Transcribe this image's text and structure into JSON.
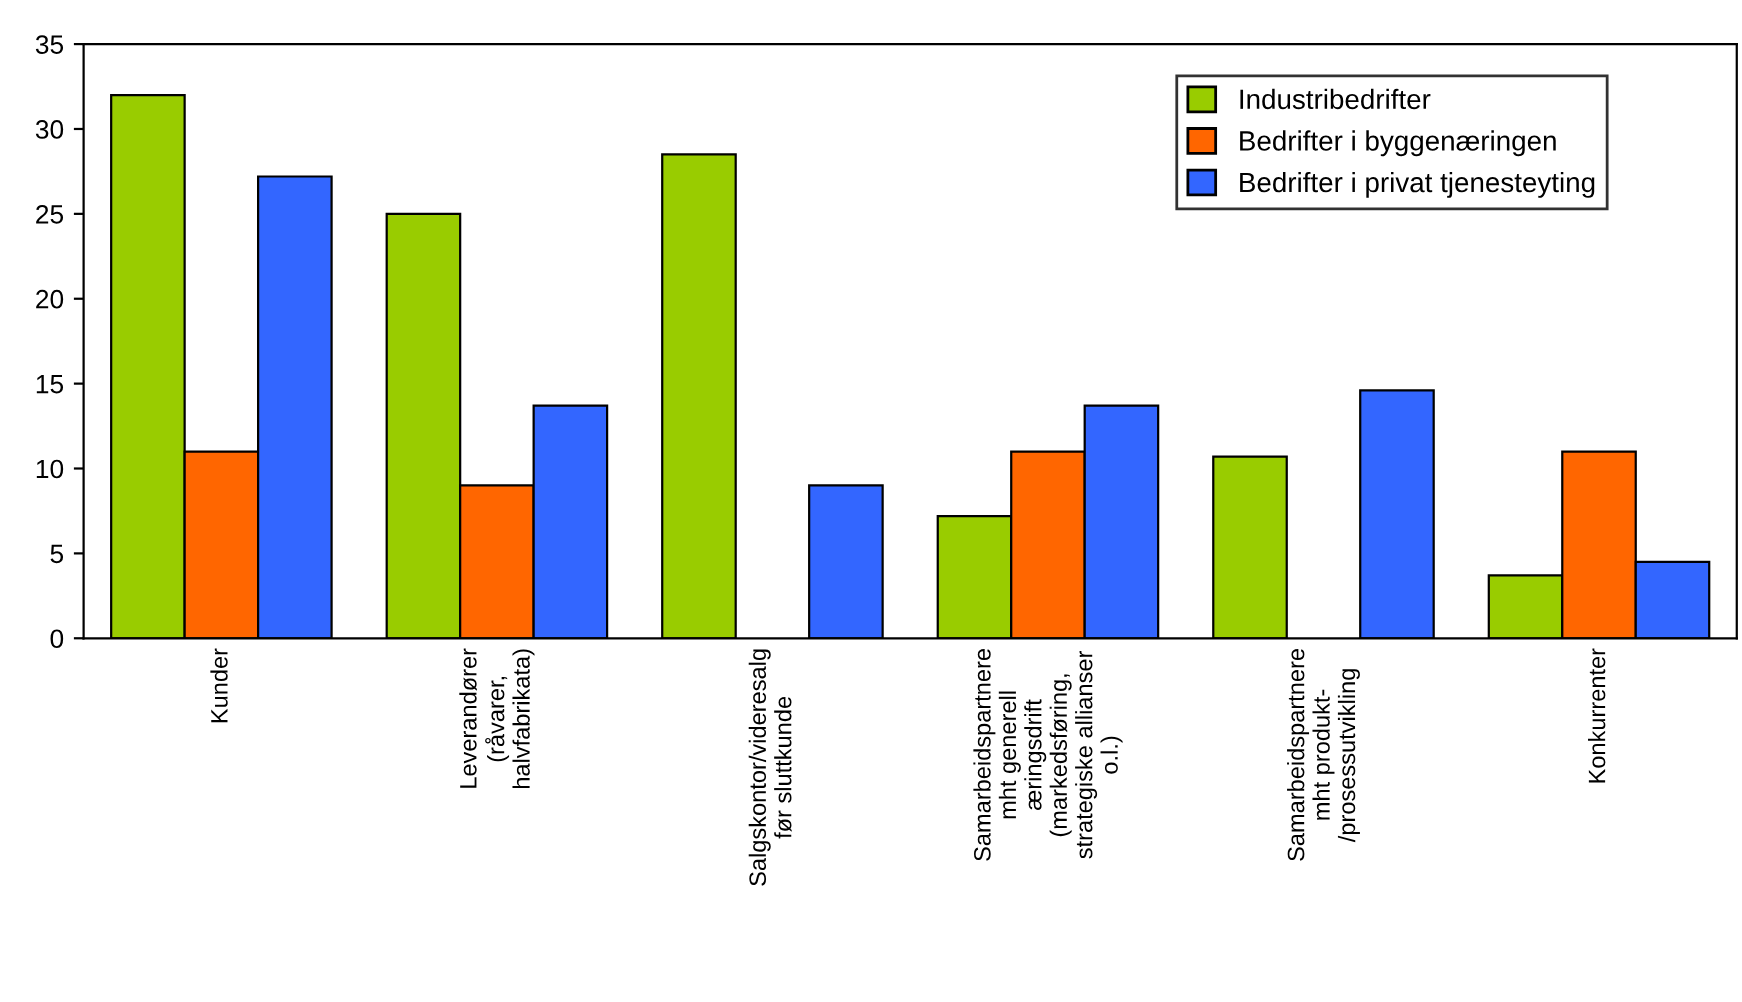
{
  "chart_data": {
    "type": "bar",
    "categories": [
      "Kunder",
      "Leverandører\n(råvarer,\nhalvfabrikata)",
      "Salgskontor/videresalg\nfør sluttkunde",
      "Samarbeidspartnere\nmht generell\næringsdrift\n(markedsføring,\nstrategiske allianser\no.l.)",
      "Samarbeidspartnere\nmht produkt-\n/prosessutvikling",
      "Konkurrenter"
    ],
    "series": [
      {
        "name": "Industribedrifter",
        "color": "#99cc00",
        "values": [
          32,
          25,
          28.5,
          7.2,
          10.7,
          3.7
        ]
      },
      {
        "name": "Bedrifter i byggenæringen",
        "color": "#ff6600",
        "values": [
          11,
          9,
          null,
          11,
          null,
          11
        ]
      },
      {
        "name": "Bedrifter i privat tjenesteyting",
        "color": "#3366ff",
        "values": [
          27.2,
          13.7,
          9,
          13.7,
          14.6,
          4.5
        ]
      }
    ],
    "ylim": [
      0,
      35
    ],
    "yticks": [
      0,
      5,
      10,
      15,
      20,
      25,
      30,
      35
    ],
    "grid": false,
    "legend": "top right"
  }
}
